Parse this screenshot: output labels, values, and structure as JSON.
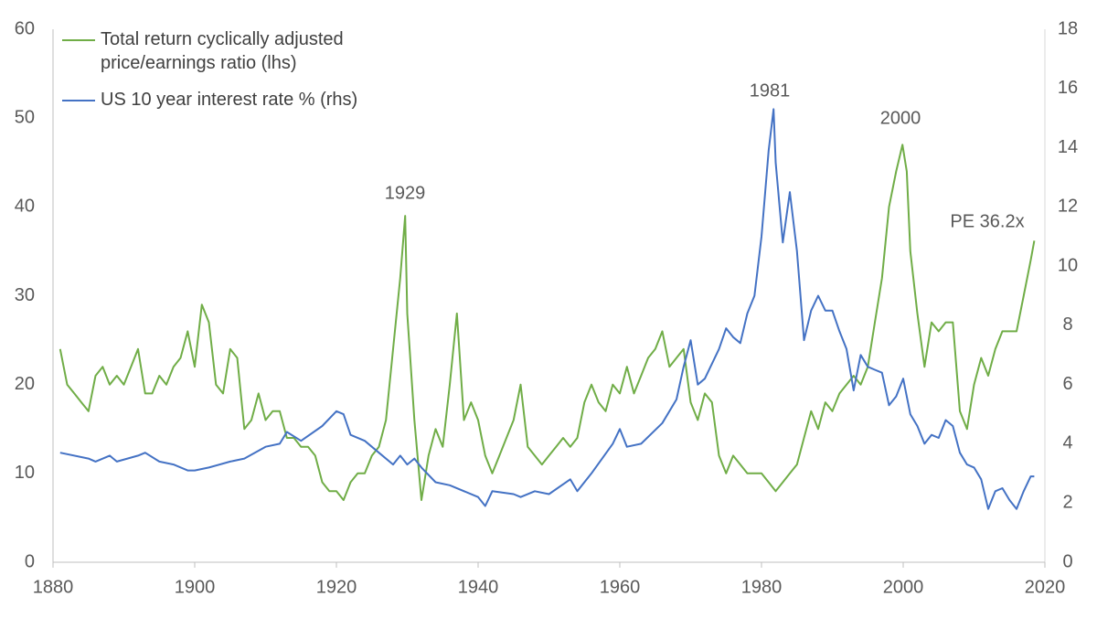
{
  "chart_data": {
    "type": "line",
    "xlim": [
      1880,
      2020
    ],
    "xticks": [
      1880,
      1900,
      1920,
      1940,
      1960,
      1980,
      2000,
      2020
    ],
    "ylim": [
      0,
      60
    ],
    "yticks": [
      0,
      10,
      20,
      30,
      40,
      50,
      60
    ],
    "y2lim": [
      0,
      18
    ],
    "y2ticks": [
      0,
      2,
      4,
      6,
      8,
      10,
      12,
      14,
      16,
      18
    ],
    "grid": false,
    "legend": "top-left",
    "annotations": [
      "1929",
      "1981",
      "2000",
      "PE 36.2x"
    ],
    "series": [
      {
        "name": "Total return cyclically adjusted price/earnings ratio (lhs)",
        "color": "#70ad47",
        "axis": "y",
        "x": [
          1881,
          1882,
          1883,
          1884,
          1885,
          1886,
          1887,
          1888,
          1889,
          1890,
          1891,
          1892,
          1893,
          1894,
          1895,
          1896,
          1897,
          1898,
          1899,
          1900,
          1901,
          1902,
          1903,
          1904,
          1905,
          1906,
          1907,
          1908,
          1909,
          1910,
          1911,
          1912,
          1913,
          1914,
          1915,
          1916,
          1917,
          1918,
          1919,
          1920,
          1921,
          1922,
          1923,
          1924,
          1925,
          1926,
          1927,
          1928,
          1929,
          1929.7,
          1930,
          1931,
          1932,
          1933,
          1934,
          1935,
          1936,
          1937,
          1938,
          1939,
          1940,
          1941,
          1942,
          1943,
          1944,
          1945,
          1946,
          1947,
          1948,
          1949,
          1950,
          1951,
          1952,
          1953,
          1954,
          1955,
          1956,
          1957,
          1958,
          1959,
          1960,
          1961,
          1962,
          1963,
          1964,
          1965,
          1966,
          1967,
          1968,
          1969,
          1970,
          1971,
          1972,
          1973,
          1974,
          1975,
          1976,
          1977,
          1978,
          1979,
          1980,
          1981,
          1982,
          1983,
          1984,
          1985,
          1986,
          1987,
          1988,
          1989,
          1990,
          1991,
          1992,
          1993,
          1994,
          1995,
          1996,
          1997,
          1998,
          1999,
          1999.9,
          2000.5,
          2001,
          2002,
          2003,
          2004,
          2005,
          2006,
          2007,
          2008,
          2009,
          2010,
          2011,
          2012,
          2013,
          2014,
          2015,
          2016,
          2017,
          2018,
          2018.5
        ],
        "values": [
          24,
          20,
          19,
          18,
          17,
          21,
          22,
          20,
          21,
          20,
          22,
          24,
          19,
          19,
          21,
          20,
          22,
          23,
          26,
          22,
          29,
          27,
          20,
          19,
          24,
          23,
          15,
          16,
          19,
          16,
          17,
          17,
          14,
          14,
          13,
          13,
          12,
          9,
          8,
          8,
          7,
          9,
          10,
          10,
          12,
          13,
          16,
          24,
          32,
          39,
          28,
          16,
          7,
          12,
          15,
          13,
          20,
          28,
          16,
          18,
          16,
          12,
          10,
          12,
          14,
          16,
          20,
          13,
          12,
          11,
          12,
          13,
          14,
          13,
          14,
          18,
          20,
          18,
          17,
          20,
          19,
          22,
          19,
          21,
          23,
          24,
          26,
          22,
          23,
          24,
          18,
          16,
          19,
          18,
          12,
          10,
          12,
          11,
          10,
          10,
          10,
          9,
          8,
          9,
          10,
          11,
          14,
          17,
          15,
          18,
          17,
          19,
          20,
          21,
          20,
          22,
          27,
          32,
          40,
          44,
          47,
          44,
          35,
          28,
          22,
          27,
          26,
          27,
          27,
          17,
          15,
          20,
          23,
          21,
          24,
          26,
          26,
          26,
          30,
          34,
          36.2
        ]
      },
      {
        "name": "US 10 year interest rate % (rhs)",
        "color": "#4472c4",
        "axis": "y2",
        "x": [
          1881,
          1885,
          1886,
          1888,
          1889,
          1892,
          1893,
          1895,
          1897,
          1899,
          1900,
          1902,
          1905,
          1907,
          1910,
          1912,
          1913,
          1915,
          1918,
          1920,
          1921,
          1922,
          1924,
          1926,
          1928,
          1929,
          1930,
          1931,
          1932,
          1934,
          1936,
          1940,
          1941,
          1942,
          1945,
          1946,
          1948,
          1950,
          1953,
          1954,
          1956,
          1959,
          1960,
          1961,
          1963,
          1966,
          1968,
          1969,
          1970,
          1971,
          1972,
          1974,
          1975,
          1976,
          1977,
          1978,
          1979,
          1980,
          1981,
          1981.7,
          1982,
          1983,
          1984,
          1985,
          1986,
          1987,
          1988,
          1989,
          1990,
          1991,
          1992,
          1993,
          1994,
          1995,
          1996,
          1997,
          1998,
          1999,
          2000,
          2001,
          2002,
          2003,
          2004,
          2005,
          2006,
          2007,
          2008,
          2009,
          2010,
          2011,
          2012,
          2013,
          2014,
          2015,
          2016,
          2017,
          2018,
          2018.5
        ],
        "values": [
          3.7,
          3.5,
          3.4,
          3.6,
          3.4,
          3.6,
          3.7,
          3.4,
          3.3,
          3.1,
          3.1,
          3.2,
          3.4,
          3.5,
          3.9,
          4.0,
          4.4,
          4.1,
          4.6,
          5.1,
          5.0,
          4.3,
          4.1,
          3.7,
          3.3,
          3.6,
          3.3,
          3.5,
          3.2,
          2.7,
          2.6,
          2.2,
          1.9,
          2.4,
          2.3,
          2.2,
          2.4,
          2.3,
          2.8,
          2.4,
          3.0,
          4.0,
          4.5,
          3.9,
          4.0,
          4.7,
          5.5,
          6.6,
          7.5,
          6.0,
          6.2,
          7.2,
          7.9,
          7.6,
          7.4,
          8.4,
          9.0,
          11.0,
          13.9,
          15.3,
          13.5,
          10.8,
          12.5,
          10.5,
          7.5,
          8.5,
          9.0,
          8.5,
          8.5,
          7.8,
          7.2,
          5.8,
          7.0,
          6.6,
          6.5,
          6.4,
          5.3,
          5.6,
          6.2,
          5.0,
          4.6,
          4.0,
          4.3,
          4.2,
          4.8,
          4.6,
          3.7,
          3.3,
          3.2,
          2.8,
          1.8,
          2.4,
          2.5,
          2.1,
          1.8,
          2.4,
          2.9,
          2.9
        ]
      }
    ]
  }
}
